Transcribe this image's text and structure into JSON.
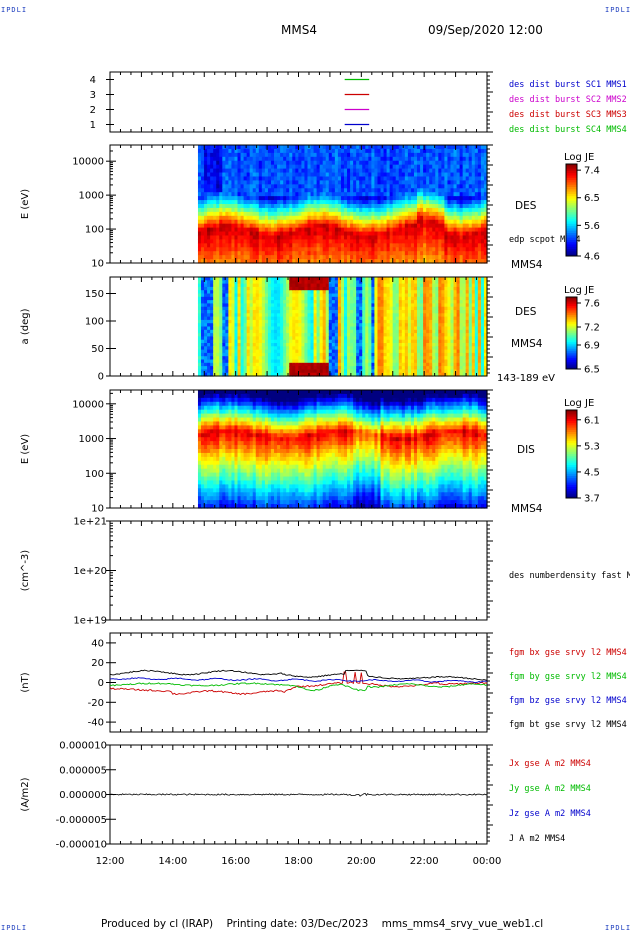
{
  "page": {
    "corner_label": "IPDLI",
    "title": "MMS4",
    "datetime": "09/Sep/2020 12:00",
    "footer": {
      "produced_by": "Produced by cl (IRAP)",
      "printing_date": "Printing date: 03/Dec/2023",
      "file": "mms_mms4_srvy_vue_web1.cl"
    }
  },
  "chart_data": [
    {
      "id": "panel1",
      "type": "line",
      "yticks": [
        "1",
        "2",
        "3",
        "4"
      ],
      "ylim": [
        0.5,
        4.5
      ],
      "legend": [
        {
          "text": "des dist burst SC1 MMS1",
          "color": "#0000cc",
          "level": 1
        },
        {
          "text": "des dist burst SC2 MMS2",
          "color": "#cc00cc",
          "level": 2
        },
        {
          "text": "des dist burst SC3 MMS3",
          "color": "#cc0000",
          "level": 3
        },
        {
          "text": "des dist burst SC4 MMS4",
          "color": "#00bb00",
          "level": 4
        }
      ],
      "burst_interval_hours": [
        19.47,
        20.25
      ]
    },
    {
      "id": "panel2",
      "type": "heatmap",
      "ylabel": "E (eV)",
      "yscale": "log",
      "yticks": [
        "10",
        "100",
        "1000",
        "10000"
      ],
      "ylim": [
        10,
        30000
      ],
      "right_labels": [
        "DES",
        "edp scpot MMS4",
        "MMS4"
      ],
      "colorbar": {
        "title": "Log JE",
        "ticks": [
          "4.6",
          "5.6",
          "6.5",
          "7.4"
        ],
        "range": [
          4.6,
          7.6
        ]
      },
      "data_start_hour": 14.8
    },
    {
      "id": "panel3",
      "type": "heatmap",
      "ylabel": "a (deg)",
      "yticks": [
        "0",
        "50",
        "100",
        "150"
      ],
      "ylim": [
        0,
        180
      ],
      "right_labels": [
        "DES",
        "MMS4",
        "143-189 eV"
      ],
      "colorbar": {
        "title": "Log JE",
        "ticks": [
          "6.5",
          "6.9",
          "7.2",
          "7.6"
        ],
        "range": [
          6.5,
          7.7
        ]
      },
      "data_start_hour": 14.8
    },
    {
      "id": "panel4",
      "type": "heatmap",
      "ylabel": "E (eV)",
      "yscale": "log",
      "yticks": [
        "10",
        "100",
        "1000",
        "10000"
      ],
      "ylim": [
        10,
        25000
      ],
      "right_labels": [
        "DIS",
        "MMS4"
      ],
      "colorbar": {
        "title": "Log JE",
        "ticks": [
          "3.7",
          "4.5",
          "5.3",
          "6.1"
        ],
        "range": [
          3.7,
          6.4
        ]
      },
      "data_start_hour": 14.8
    },
    {
      "id": "panel5",
      "type": "line",
      "ylabel": "(cm^-3)",
      "yscale": "log",
      "yticks": [
        "1e+19",
        "1e+20",
        "1e+21"
      ],
      "ylim": [
        1e+19,
        1e+21
      ],
      "right_labels": [
        "des numberdensity fast M"
      ]
    },
    {
      "id": "panel6",
      "type": "line",
      "ylabel": "(nT)",
      "yticks": [
        "-40",
        "-20",
        "0",
        "20",
        "40"
      ],
      "ylim": [
        -50,
        50
      ],
      "series": [
        {
          "name": "fgm bx gse srvy l2 MMS4",
          "color": "#cc0000"
        },
        {
          "name": "fgm by gse srvy l2 MMS4",
          "color": "#00bb00"
        },
        {
          "name": "fgm bz gse srvy l2 MMS4",
          "color": "#0000cc"
        },
        {
          "name": "fgm bt gse srvy l2 MMS4",
          "color": "#000000"
        }
      ]
    },
    {
      "id": "panel7",
      "type": "line",
      "ylabel": "(A/m2)",
      "yticks": [
        "-0.000010",
        "-0.000005",
        "0.000000",
        "0.000005",
        "0.000010"
      ],
      "ylim": [
        -1e-05,
        1e-05
      ],
      "series": [
        {
          "name": "Jx gse A m2 MMS4",
          "color": "#cc0000"
        },
        {
          "name": "Jy gse A m2 MMS4",
          "color": "#00bb00"
        },
        {
          "name": "Jz gse A m2 MMS4",
          "color": "#0000cc"
        },
        {
          "name": "J A m2 MMS4",
          "color": "#000000"
        }
      ]
    }
  ],
  "time_axis": {
    "range_hours": [
      12,
      24
    ],
    "ticks": [
      "12:00",
      "14:00",
      "16:00",
      "18:00",
      "20:00",
      "22:00",
      "00:00"
    ]
  }
}
